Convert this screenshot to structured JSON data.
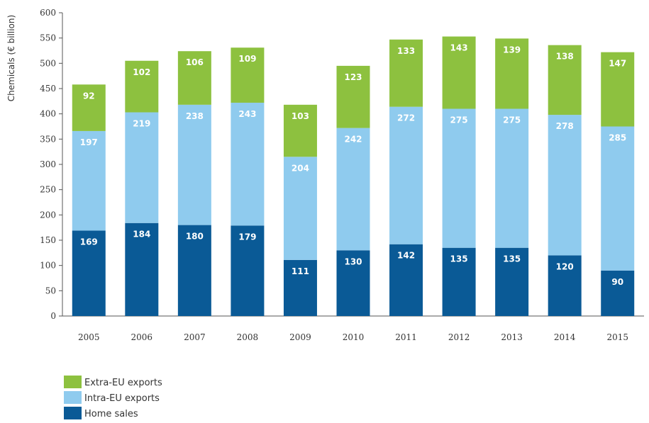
{
  "chart_data": {
    "type": "bar",
    "stacked": true,
    "ylabel": "Chemicals (€ billion)",
    "ylim": [
      0,
      600
    ],
    "yticks": [
      0,
      50,
      100,
      150,
      200,
      250,
      300,
      350,
      400,
      450,
      500,
      550,
      600
    ],
    "categories": [
      "2005",
      "2006",
      "2007",
      "2008",
      "2009",
      "2010",
      "2011",
      "2012",
      "2013",
      "2014",
      "2015"
    ],
    "series": [
      {
        "name": "Home sales",
        "color": "#0a5a96",
        "values": [
          169,
          184,
          180,
          179,
          111,
          130,
          142,
          135,
          135,
          120,
          90
        ]
      },
      {
        "name": "Intra-EU exports",
        "color": "#8fcbee",
        "values": [
          197,
          219,
          238,
          243,
          204,
          242,
          272,
          275,
          275,
          278,
          285
        ]
      },
      {
        "name": "Extra-EU exports",
        "color": "#8dc13f",
        "values": [
          92,
          102,
          106,
          109,
          103,
          123,
          133,
          143,
          139,
          138,
          147
        ]
      }
    ],
    "legend_position": "bottom-left",
    "legend_order": [
      "Extra-EU exports",
      "Intra-EU exports",
      "Home sales"
    ],
    "grid": false
  }
}
